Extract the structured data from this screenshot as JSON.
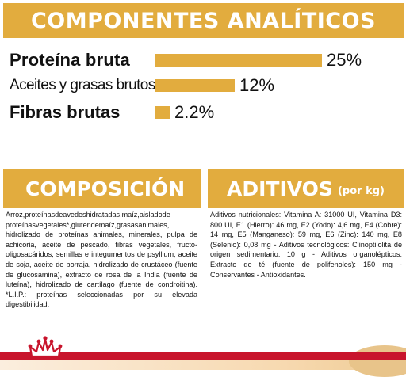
{
  "analytic": {
    "title": "COMPONENTES ANALÍTICOS",
    "rows": [
      {
        "label": "Proteína bruta",
        "value": "25%",
        "fraction": 0.25
      },
      {
        "label": "Aceites y grasas brutos",
        "value": "12%",
        "fraction": 0.12
      },
      {
        "label": "Fibras brutas",
        "value": "2.2%",
        "fraction": 0.022
      }
    ]
  },
  "composition": {
    "title": "COMPOSICIÓN",
    "text": "Arroz,proteínasdeavedeshidratadas,maíz,aisladode proteínasvegetales*,glutendemaíz,grasasanimales, hidrolizado de proteínas animales, minerales, pulpa de achicoria, aceite de pescado, fibras vegetales, fructo-oligosacáridos, semillas e integumentos de psyllium, aceite de soja, aceite de borraja, hidrolizado de crustáceo (fuente de glucosamina), extracto de rosa de la India (fuente de luteína), hidrolizado de cartílago (fuente de condroitina). *L.I.P.: proteínas seleccionadas por su elevada digestibilidad."
  },
  "additives": {
    "title": "ADITIVOS",
    "subtitle": "(por kg)",
    "text": "Aditivos nutricionales: Vitamina A: 31000 UI, Vitamina D3: 800 UI, E1 (Hierro): 46 mg, E2 (Yodo): 4,6 mg, E4 (Cobre): 14 mg, E5 (Manganeso): 59 mg, E6 (Zinc): 140 mg, E8 (Selenio): 0,08 mg - Aditivos tecnológicos: Clinoptilolita de origen sedimentario: 10 g - Aditivos organolépticos: Extracto de té (fuente de polifenoles): 150 mg - Conservantes - Antioxidantes."
  },
  "colors": {
    "accent": "#e2ac3e",
    "brand_red": "#c8142c"
  },
  "icons": {
    "logo": "royal-canin-crown-logo"
  }
}
